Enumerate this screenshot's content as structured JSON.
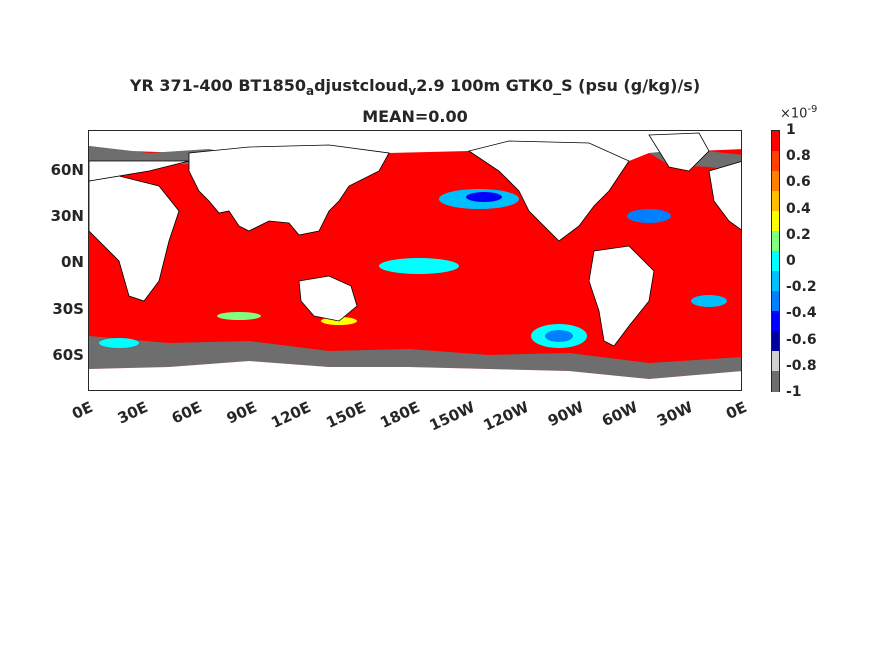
{
  "title": {
    "part1": "YR 371-400 BT1850",
    "sub1": "a",
    "part2": "djustcloud",
    "sub2": "v",
    "part3": "2.9 100m GTK0_S (psu (g/kg)/s)",
    "line2": "MEAN=0.00"
  },
  "map": {
    "lat_ticks": [
      "60N",
      "30N",
      "0N",
      "30S",
      "60S"
    ],
    "lon_ticks": [
      "0E",
      "30E",
      "60E",
      "90E",
      "120E",
      "150E",
      "180E",
      "150W",
      "120W",
      "90W",
      "60W",
      "30W",
      "0E"
    ],
    "ocean_color": "#ff0000",
    "land_color": "#ffffff",
    "missing_color": "#6e6e6e"
  },
  "colorbar": {
    "multiplier_base": "×10",
    "multiplier_exp": "-9",
    "tick_labels": [
      "1",
      "0.8",
      "0.6",
      "0.4",
      "0.2",
      "0",
      "-0.2",
      "-0.4",
      "-0.6",
      "-0.8",
      "-1"
    ],
    "colors": [
      "#ff0000",
      "#ff4000",
      "#ff8000",
      "#ffbf00",
      "#ffff00",
      "#80ff80",
      "#00ffff",
      "#00bfff",
      "#0080ff",
      "#0000ff",
      "#0000a0",
      "#d0d0d0",
      "#6e6e6e"
    ]
  }
}
